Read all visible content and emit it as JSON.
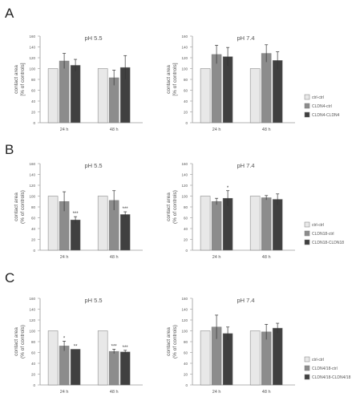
{
  "panel_labels": [
    "A",
    "B",
    "C"
  ],
  "colors": {
    "ctrl": "#e8e8e8",
    "treat": "#8c8c8c",
    "rescue": "#404040",
    "axis": "#9a9a9a",
    "text": "#555555"
  },
  "chart_data": [
    {
      "type": "bar",
      "panel": "A",
      "title": "pH 5.5",
      "xlabel": "",
      "ylabel": "contact area\n[% of controls]",
      "ylim": [
        0,
        160
      ],
      "yticks": [
        0,
        20,
        40,
        60,
        80,
        100,
        120,
        140,
        160
      ],
      "categories": [
        "24 h",
        "48 h"
      ],
      "series": [
        {
          "name": "",
          "values": [
            100,
            100
          ],
          "errors": [
            0,
            0
          ]
        },
        {
          "name": "",
          "values": [
            114,
            83
          ],
          "errors": [
            14,
            14
          ]
        },
        {
          "name": "",
          "values": [
            106,
            102
          ],
          "errors": [
            11,
            22
          ]
        }
      ],
      "annotations": [
        [
          "",
          "",
          ""
        ],
        [
          "",
          "",
          ""
        ]
      ]
    },
    {
      "type": "bar",
      "panel": "A",
      "title": "pH 7.4",
      "xlabel": "",
      "ylabel": "contact area\n[% of controls]",
      "ylim": [
        0,
        160
      ],
      "yticks": [
        0,
        20,
        40,
        60,
        80,
        100,
        120,
        140,
        160
      ],
      "categories": [
        "24 h",
        "48 h"
      ],
      "series": [
        {
          "name": "ctrl-ctrl",
          "values": [
            100,
            100
          ],
          "errors": [
            0,
            0
          ]
        },
        {
          "name": "CLDN4-ctrl",
          "values": [
            126,
            128
          ],
          "errors": [
            17,
            16
          ]
        },
        {
          "name": "CLDN4-CLDN4",
          "values": [
            122,
            115
          ],
          "errors": [
            17,
            16
          ]
        }
      ],
      "annotations": [
        [
          "",
          "",
          ""
        ],
        [
          "",
          "",
          ""
        ]
      ]
    },
    {
      "type": "bar",
      "panel": "B",
      "title": "pH 5.5",
      "xlabel": "",
      "ylabel": "contact area\n(% of controls)",
      "ylim": [
        0,
        160
      ],
      "yticks": [
        0,
        20,
        40,
        60,
        80,
        100,
        120,
        140,
        160
      ],
      "categories": [
        "24 h",
        "48 h"
      ],
      "series": [
        {
          "name": "",
          "values": [
            100,
            100
          ],
          "errors": [
            0,
            0
          ]
        },
        {
          "name": "",
          "values": [
            90,
            92
          ],
          "errors": [
            18,
            18
          ]
        },
        {
          "name": "",
          "values": [
            56,
            66
          ],
          "errors": [
            6,
            5
          ]
        }
      ],
      "annotations": [
        [
          "",
          "",
          "***"
        ],
        [
          "",
          "",
          "***"
        ]
      ]
    },
    {
      "type": "bar",
      "panel": "B",
      "title": "pH 7.4",
      "xlabel": "",
      "ylabel": "contact area\n(% of controls)",
      "ylim": [
        0,
        160
      ],
      "yticks": [
        0,
        20,
        40,
        60,
        80,
        100,
        120,
        140,
        160
      ],
      "categories": [
        "24 h",
        "48 h"
      ],
      "series": [
        {
          "name": "ctrl-ctrl",
          "values": [
            100,
            100
          ],
          "errors": [
            0,
            0
          ]
        },
        {
          "name": "CLDN18-ctrl",
          "values": [
            90,
            97
          ],
          "errors": [
            6,
            4
          ]
        },
        {
          "name": "CLDN18-CLDN18",
          "values": [
            96,
            94
          ],
          "errors": [
            14,
            10
          ]
        }
      ],
      "annotations": [
        [
          "",
          "",
          "*"
        ],
        [
          "",
          "",
          ""
        ]
      ]
    },
    {
      "type": "bar",
      "panel": "C",
      "title": "pH 5.5",
      "xlabel": "",
      "ylabel": "contact area\n(% of controls)",
      "ylim": [
        0,
        160
      ],
      "yticks": [
        0,
        20,
        40,
        60,
        80,
        100,
        120,
        140,
        160
      ],
      "categories": [
        "24 h",
        "48 h"
      ],
      "series": [
        {
          "name": "",
          "values": [
            100,
            100
          ],
          "errors": [
            0,
            0
          ]
        },
        {
          "name": "",
          "values": [
            72,
            62
          ],
          "errors": [
            9,
            4
          ]
        },
        {
          "name": "",
          "values": [
            66,
            61
          ],
          "errors": [
            0,
            3
          ]
        }
      ],
      "annotations": [
        [
          "",
          "*",
          "**"
        ],
        [
          "",
          "***",
          "***"
        ]
      ]
    },
    {
      "type": "bar",
      "panel": "C",
      "title": "pH 7.4",
      "xlabel": "",
      "ylabel": "contact area\n(% of controls)",
      "ylim": [
        0,
        160
      ],
      "yticks": [
        0,
        20,
        40,
        60,
        80,
        100,
        120,
        140,
        160
      ],
      "categories": [
        "24 h",
        "48 h"
      ],
      "series": [
        {
          "name": "ctrl-ctrl",
          "values": [
            100,
            100
          ],
          "errors": [
            0,
            0
          ]
        },
        {
          "name": "CLDN4/18-ctrl",
          "values": [
            107,
            98
          ],
          "errors": [
            22,
            14
          ]
        },
        {
          "name": "CLDN4/18-CLDN4/18",
          "values": [
            95,
            105
          ],
          "errors": [
            12,
            9
          ]
        }
      ],
      "annotations": [
        [
          "",
          "",
          ""
        ],
        [
          "",
          "",
          ""
        ]
      ]
    }
  ]
}
